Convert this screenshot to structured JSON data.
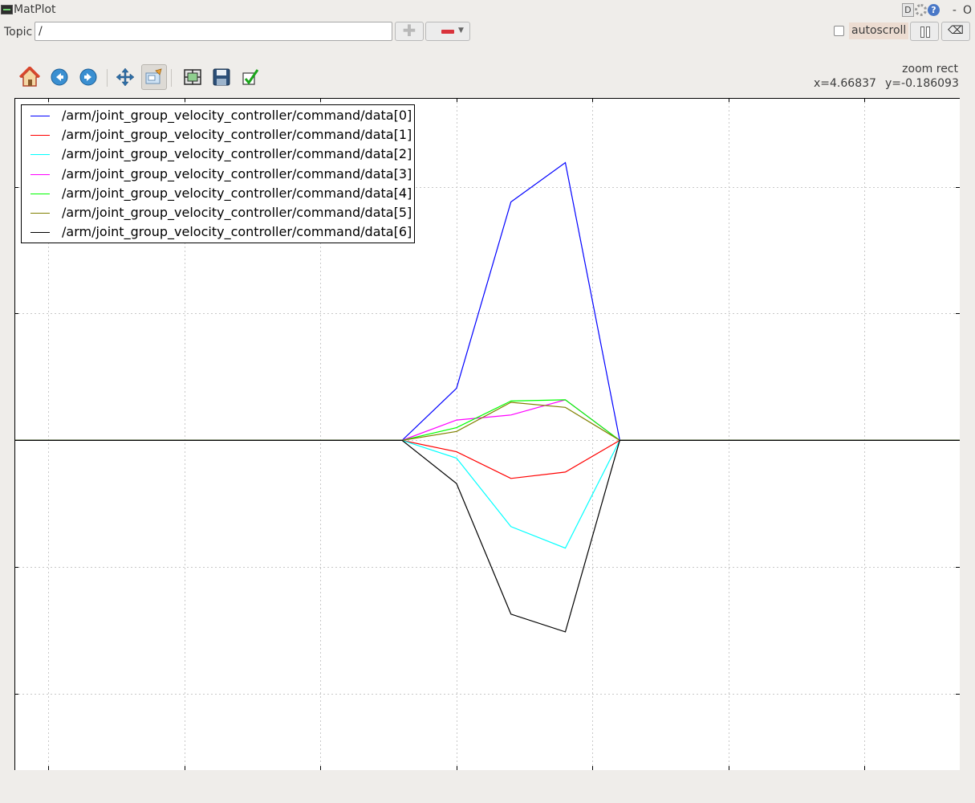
{
  "window": {
    "title": "MatPlot",
    "buttons": {
      "d": "D",
      "help": "?",
      "minimize": "-",
      "close": "O"
    }
  },
  "topic_bar": {
    "label": "Topic",
    "value": "/",
    "add_icon": "plus-icon",
    "remove_icon": "minus-icon",
    "autoscroll_label": "autoscroll",
    "autoscroll_checked": false,
    "clear_glyph": "⌫"
  },
  "toolbar": {
    "icons": [
      "home-icon",
      "back-icon",
      "forward-icon",
      "pan-icon",
      "zoom-icon",
      "subplots-icon",
      "save-icon",
      "edit-curves-icon"
    ],
    "active": "zoom-icon",
    "mode": "zoom rect",
    "x_readout": "x=4.66837",
    "y_readout": "y=-0.186093"
  },
  "legend": {
    "entries": [
      {
        "label": "/arm/joint_group_velocity_controller/command/data[0]",
        "color": "#0000ff"
      },
      {
        "label": "/arm/joint_group_velocity_controller/command/data[1]",
        "color": "#ff0000"
      },
      {
        "label": "/arm/joint_group_velocity_controller/command/data[2]",
        "color": "#00ffff"
      },
      {
        "label": "/arm/joint_group_velocity_controller/command/data[3]",
        "color": "#ff00ff"
      },
      {
        "label": "/arm/joint_group_velocity_controller/command/data[4]",
        "color": "#00ff00"
      },
      {
        "label": "/arm/joint_group_velocity_controller/command/data[5]",
        "color": "#808000"
      },
      {
        "label": "/arm/joint_group_velocity_controller/command/data[6]",
        "color": "#000000"
      }
    ]
  },
  "chart_data": {
    "type": "line",
    "title": "",
    "xlabel": "",
    "ylabel": "",
    "grid": true,
    "legend_position": "top-left",
    "xlim": [
      -0.25,
      6.7
    ],
    "ylim": [
      -2.6,
      2.7
    ],
    "x_ticks": [
      0,
      1,
      2,
      3,
      4,
      5,
      6
    ],
    "y_ticks": [
      -2,
      -1,
      0,
      1,
      2
    ],
    "series": [
      {
        "name": "/arm/joint_group_velocity_controller/command/data[0]",
        "color": "#0000ff",
        "points": [
          [
            -0.25,
            0
          ],
          [
            2.6,
            0
          ],
          [
            3.0,
            0.41
          ],
          [
            3.4,
            1.88
          ],
          [
            3.8,
            2.19
          ],
          [
            4.2,
            0
          ],
          [
            6.7,
            0
          ]
        ]
      },
      {
        "name": "/arm/joint_group_velocity_controller/command/data[1]",
        "color": "#ff0000",
        "points": [
          [
            -0.25,
            0
          ],
          [
            2.6,
            0
          ],
          [
            3.0,
            -0.09
          ],
          [
            3.4,
            -0.3
          ],
          [
            3.8,
            -0.25
          ],
          [
            4.2,
            0
          ],
          [
            6.7,
            0
          ]
        ]
      },
      {
        "name": "/arm/joint_group_velocity_controller/command/data[2]",
        "color": "#00ffff",
        "points": [
          [
            -0.25,
            0
          ],
          [
            2.6,
            0
          ],
          [
            3.0,
            -0.14
          ],
          [
            3.4,
            -0.68
          ],
          [
            3.8,
            -0.85
          ],
          [
            4.2,
            0
          ],
          [
            6.7,
            0
          ]
        ]
      },
      {
        "name": "/arm/joint_group_velocity_controller/command/data[3]",
        "color": "#ff00ff",
        "points": [
          [
            -0.25,
            0
          ],
          [
            2.6,
            0
          ],
          [
            3.0,
            0.16
          ],
          [
            3.4,
            0.2
          ],
          [
            3.8,
            0.32
          ],
          [
            4.2,
            0
          ],
          [
            6.7,
            0
          ]
        ]
      },
      {
        "name": "/arm/joint_group_velocity_controller/command/data[4]",
        "color": "#00ff00",
        "points": [
          [
            -0.25,
            0
          ],
          [
            2.6,
            0
          ],
          [
            3.0,
            0.1
          ],
          [
            3.4,
            0.31
          ],
          [
            3.8,
            0.32
          ],
          [
            4.2,
            0
          ],
          [
            6.7,
            0
          ]
        ]
      },
      {
        "name": "/arm/joint_group_velocity_controller/command/data[5]",
        "color": "#808000",
        "points": [
          [
            -0.25,
            0
          ],
          [
            2.6,
            0
          ],
          [
            3.0,
            0.07
          ],
          [
            3.4,
            0.3
          ],
          [
            3.8,
            0.26
          ],
          [
            4.2,
            0
          ],
          [
            6.7,
            0
          ]
        ]
      },
      {
        "name": "/arm/joint_group_velocity_controller/command/data[6]",
        "color": "#000000",
        "points": [
          [
            -0.25,
            0
          ],
          [
            2.6,
            0
          ],
          [
            3.0,
            -0.34
          ],
          [
            3.4,
            -1.37
          ],
          [
            3.8,
            -1.51
          ],
          [
            4.2,
            0
          ],
          [
            6.7,
            0
          ]
        ]
      }
    ]
  }
}
